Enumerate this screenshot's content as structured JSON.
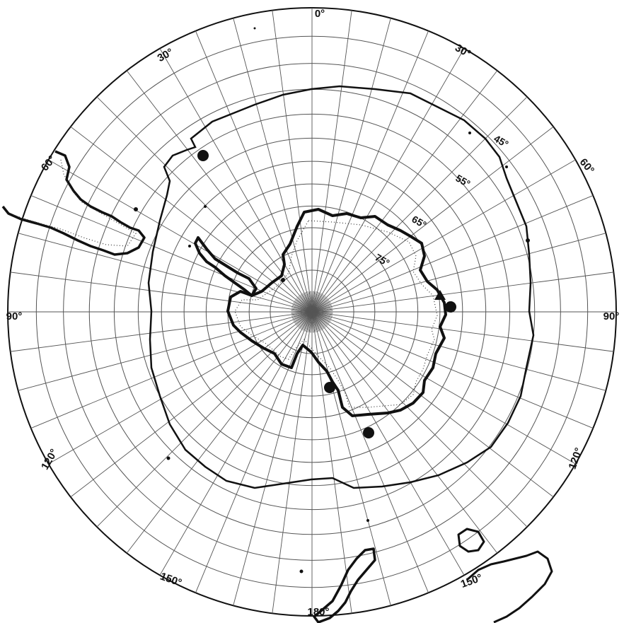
{
  "map": {
    "projection": "south polar stereographic",
    "colors": {
      "ink": "#111111",
      "grid": "#555555",
      "paper": "#ffffff"
    },
    "meridian_step_deg": 7.5,
    "latitude_circles_deg": [
      -80,
      -75,
      -70,
      -65,
      -60,
      -55,
      -50,
      -45,
      -40,
      -35,
      -30
    ],
    "outer_latitude_deg": -25,
    "longitude_labels": [
      {
        "text": "0°"
      },
      {
        "text": "30°"
      },
      {
        "text": "30°"
      },
      {
        "text": "60°"
      },
      {
        "text": "60°"
      },
      {
        "text": "90°"
      },
      {
        "text": "90°"
      },
      {
        "text": "120°"
      },
      {
        "text": "120°"
      },
      {
        "text": "150°"
      },
      {
        "text": "150°"
      },
      {
        "text": "180°"
      }
    ],
    "latitude_labels": [
      {
        "text": "45°"
      },
      {
        "text": "55°"
      },
      {
        "text": "65°"
      },
      {
        "text": "75°"
      }
    ],
    "markers": [
      {
        "type": "circle",
        "name": "station"
      },
      {
        "type": "circle",
        "name": "station"
      },
      {
        "type": "circle",
        "name": "station"
      },
      {
        "type": "circle",
        "name": "station"
      },
      {
        "type": "triangle",
        "name": "station"
      }
    ]
  }
}
